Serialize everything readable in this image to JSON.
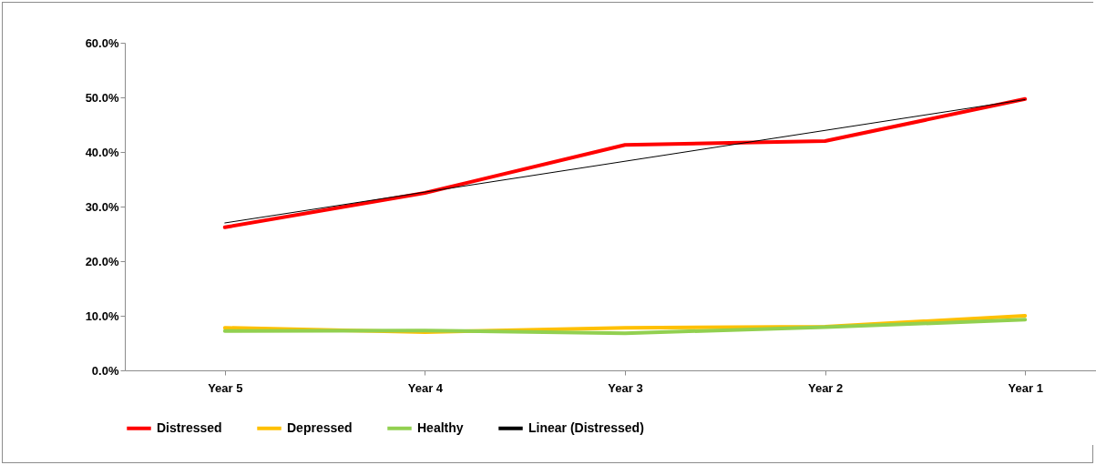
{
  "chart_data": {
    "type": "line",
    "categories": [
      "Year 5",
      "Year 4",
      "Year 3",
      "Year 2",
      "Year 1"
    ],
    "series": [
      {
        "name": "Distressed",
        "color": "#ff0000",
        "values": [
          26.2,
          32.5,
          41.3,
          42.0,
          49.7
        ]
      },
      {
        "name": "Depressed",
        "color": "#ffc000",
        "values": [
          7.8,
          7.0,
          7.8,
          8.0,
          10.0
        ]
      },
      {
        "name": "Healthy",
        "color": "#92d050",
        "values": [
          7.2,
          7.3,
          6.8,
          7.9,
          9.3
        ]
      },
      {
        "name": "Linear (Distressed)",
        "color": "#000000",
        "type": "line",
        "x": [
          "Year 5",
          "Year 1"
        ],
        "values": [
          27.0,
          49.6
        ]
      }
    ],
    "ylim": [
      0,
      60
    ],
    "yticks": [
      {
        "value": 0,
        "label": "0.0%"
      },
      {
        "value": 10,
        "label": "10.0%"
      },
      {
        "value": 20,
        "label": "20.0%"
      },
      {
        "value": 30,
        "label": "30.0%"
      },
      {
        "value": 40,
        "label": "40.0%"
      },
      {
        "value": 50,
        "label": "50.0%"
      },
      {
        "value": 60,
        "label": "60.0%"
      }
    ],
    "grid": false,
    "legend": "bottom"
  }
}
